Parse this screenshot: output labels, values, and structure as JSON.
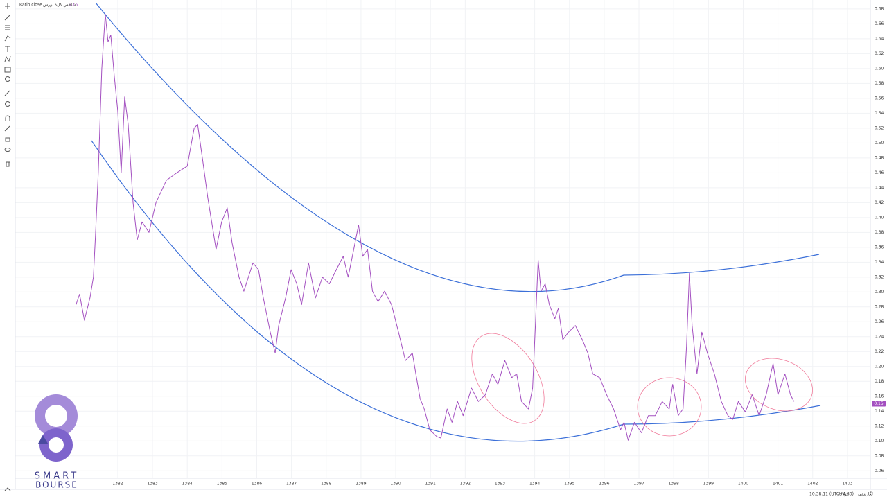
{
  "chart_data": {
    "type": "line",
    "title": "Ratio close",
    "subtitle": "شاخص کل‌ة بورس",
    "last_price": 0.15,
    "timezone_label": "10:38:11 (UTC+4:30)",
    "scale_labels": [
      "لگاریتمی",
      "خودکار"
    ],
    "logo": [
      "SMART",
      "BOURSE"
    ],
    "grid": true,
    "xlim": [
      1379.05,
      1403.66
    ],
    "xticks": [
      1382,
      1383,
      1384,
      1385,
      1386,
      1387,
      1388,
      1389,
      1390,
      1391,
      1392,
      1393,
      1394,
      1395,
      1396,
      1397,
      1398,
      1399,
      1400,
      1401,
      1402,
      1403
    ],
    "ylim": [
      0.05,
      0.692
    ],
    "yticks": [
      0.06,
      0.08,
      {
        "value": 0.1,
        "label": "0.10"
      },
      0.12,
      0.14,
      0.16,
      0.18,
      {
        "value": 0.2,
        "label": "0.20"
      },
      0.22,
      0.24,
      0.26,
      0.28,
      {
        "value": 0.3,
        "label": "0.30"
      },
      0.32,
      0.34,
      0.36,
      0.38,
      {
        "value": 0.4,
        "label": "0.40"
      },
      0.42,
      0.44,
      0.46,
      0.48,
      {
        "value": 0.5,
        "label": "0.50"
      },
      0.52,
      0.54,
      0.56,
      0.58,
      {
        "value": 0.6,
        "label": "0.60"
      },
      0.62,
      0.64,
      0.66,
      0.68
    ],
    "series": [
      {
        "name": "Ratio close",
        "color": "#a34fc0",
        "x": [
          1380.8,
          1380.9,
          1381.04,
          1381.2,
          1381.3,
          1381.36,
          1381.44,
          1381.54,
          1381.64,
          1381.72,
          1381.8,
          1381.9,
          1382.0,
          1382.1,
          1382.2,
          1382.3,
          1382.44,
          1382.56,
          1382.7,
          1382.9,
          1383.1,
          1383.4,
          1383.7,
          1384.0,
          1384.2,
          1384.3,
          1384.44,
          1384.59,
          1384.83,
          1384.99,
          1385.15,
          1385.29,
          1385.49,
          1385.63,
          1385.89,
          1386.05,
          1386.19,
          1386.39,
          1386.53,
          1386.63,
          1386.83,
          1386.99,
          1387.15,
          1387.29,
          1387.49,
          1387.69,
          1387.89,
          1388.09,
          1388.29,
          1388.49,
          1388.63,
          1388.79,
          1388.93,
          1389.05,
          1389.19,
          1389.33,
          1389.49,
          1389.68,
          1389.88,
          1390.08,
          1390.28,
          1390.48,
          1390.58,
          1390.7,
          1390.82,
          1390.98,
          1391.18,
          1391.3,
          1391.48,
          1391.62,
          1391.78,
          1391.94,
          1392.18,
          1392.38,
          1392.58,
          1392.78,
          1392.94,
          1393.14,
          1393.34,
          1393.48,
          1393.62,
          1393.82,
          1393.94,
          1394.02,
          1394.1,
          1394.18,
          1394.3,
          1394.42,
          1394.58,
          1394.68,
          1394.81,
          1394.97,
          1395.17,
          1395.37,
          1395.53,
          1395.67,
          1395.87,
          1396.07,
          1396.27,
          1396.47,
          1396.57,
          1396.69,
          1396.87,
          1397.07,
          1397.27,
          1397.47,
          1397.67,
          1397.87,
          1397.97,
          1398.13,
          1398.27,
          1398.37,
          1398.45,
          1398.53,
          1398.67,
          1398.81,
          1398.97,
          1399.17,
          1399.37,
          1399.56,
          1399.7,
          1399.86,
          1400.06,
          1400.26,
          1400.46,
          1400.66,
          1400.86,
          1401.0,
          1401.2,
          1401.36,
          1401.46
        ],
        "values": [
          0.283,
          0.297,
          0.262,
          0.292,
          0.32,
          0.376,
          0.46,
          0.6,
          0.673,
          0.636,
          0.645,
          0.59,
          0.543,
          0.46,
          0.562,
          0.525,
          0.42,
          0.37,
          0.394,
          0.38,
          0.42,
          0.45,
          0.46,
          0.469,
          0.52,
          0.525,
          0.478,
          0.427,
          0.357,
          0.394,
          0.413,
          0.366,
          0.32,
          0.301,
          0.339,
          0.33,
          0.292,
          0.246,
          0.218,
          0.255,
          0.292,
          0.33,
          0.311,
          0.283,
          0.339,
          0.292,
          0.32,
          0.311,
          0.33,
          0.348,
          0.32,
          0.357,
          0.39,
          0.348,
          0.357,
          0.301,
          0.287,
          0.301,
          0.283,
          0.246,
          0.208,
          0.218,
          0.19,
          0.157,
          0.143,
          0.115,
          0.106,
          0.104,
          0.143,
          0.125,
          0.153,
          0.134,
          0.171,
          0.153,
          0.162,
          0.19,
          0.176,
          0.208,
          0.185,
          0.19,
          0.153,
          0.143,
          0.171,
          0.255,
          0.343,
          0.301,
          0.311,
          0.283,
          0.264,
          0.278,
          0.236,
          0.246,
          0.255,
          0.236,
          0.218,
          0.19,
          0.185,
          0.162,
          0.143,
          0.115,
          0.125,
          0.101,
          0.125,
          0.111,
          0.134,
          0.134,
          0.153,
          0.143,
          0.176,
          0.134,
          0.143,
          0.227,
          0.325,
          0.255,
          0.19,
          0.246,
          0.218,
          0.19,
          0.153,
          0.134,
          0.129,
          0.153,
          0.139,
          0.162,
          0.134,
          0.162,
          0.204,
          0.162,
          0.19,
          0.162,
          0.153
        ]
      }
    ]
  }
}
